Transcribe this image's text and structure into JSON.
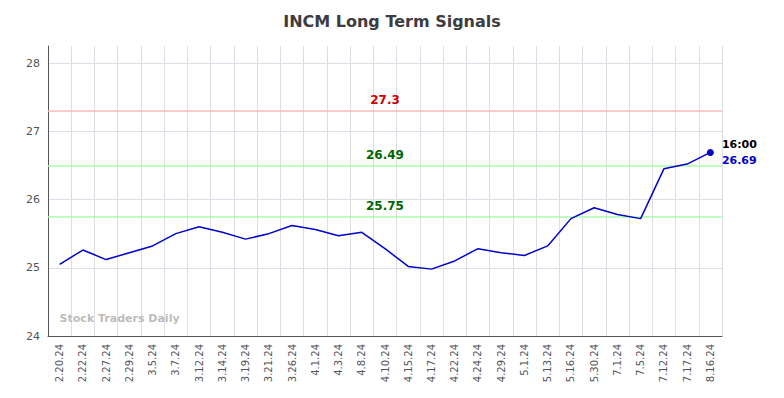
{
  "chart_data": {
    "type": "line",
    "title": "INCM Long Term Signals",
    "categories": [
      "2.20.24",
      "2.22.24",
      "2.27.24",
      "2.29.24",
      "3.5.24",
      "3.7.24",
      "3.12.24",
      "3.14.24",
      "3.19.24",
      "3.21.24",
      "3.26.24",
      "4.1.24",
      "4.3.24",
      "4.8.24",
      "4.10.24",
      "4.15.24",
      "4.17.24",
      "4.22.24",
      "4.24.24",
      "4.29.24",
      "5.1.24",
      "5.13.24",
      "5.16.24",
      "5.30.24",
      "7.1.24",
      "7.5.24",
      "7.12.24",
      "7.17.24",
      "8.16.24"
    ],
    "values": [
      25.05,
      25.26,
      25.12,
      25.22,
      25.32,
      25.5,
      25.6,
      25.52,
      25.42,
      25.5,
      25.62,
      25.56,
      25.47,
      25.52,
      25.28,
      25.02,
      24.98,
      25.1,
      25.28,
      25.22,
      25.18,
      25.32,
      25.72,
      25.88,
      25.78,
      25.72,
      26.45,
      26.52,
      26.69
    ],
    "color": "#0000cc",
    "ylim": [
      24,
      28.25
    ],
    "yticks": [
      24,
      25,
      26,
      27,
      28
    ],
    "grid": true,
    "hlines": [
      {
        "value": 27.3,
        "color": "#ffbbbb",
        "label_color": "#cc0000"
      },
      {
        "value": 26.49,
        "color": "#aaffaa",
        "label_color": "#006600"
      },
      {
        "value": 25.75,
        "color": "#aaffaa",
        "label_color": "#006600"
      }
    ],
    "annotations": [
      {
        "text": "16:00",
        "x": "8.16.24",
        "y": 26.69,
        "color": "#000000"
      },
      {
        "text": "26.69",
        "x": "8.16.24",
        "y": 26.69,
        "color": "#0000cc"
      },
      {
        "text": "Stock Traders Daily",
        "x": "2.20.24",
        "y": 24.25,
        "color": "#aaaaaa"
      }
    ]
  }
}
